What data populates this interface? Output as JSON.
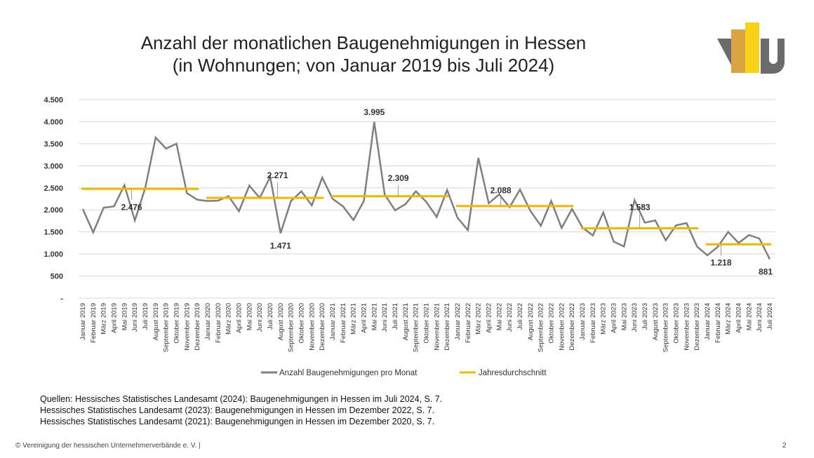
{
  "chart_data": {
    "type": "line",
    "title": "Anzahl der monatlichen Baugenehmigungen in Hessen",
    "subtitle": "(in Wohnungen; von Januar 2019 bis Juli 2024)",
    "categories": [
      "Januar 2019",
      "Februar 2019",
      "März 2019",
      "April 2019",
      "Mai 2019",
      "Juni 2019",
      "Juli 2019",
      "August 2019",
      "September 2019",
      "Oktober 2019",
      "November 2019",
      "Dezember 2019",
      "Januar 2020",
      "Februar 2020",
      "März 2020",
      "April 2020",
      "Mai 2020",
      "Juni 2020",
      "Juli 2020",
      "August 2020",
      "September 2020",
      "Oktober 2020",
      "November 2020",
      "Dezember 2020",
      "Januar 2021",
      "Februar 2021",
      "März 2021",
      "April 2021",
      "Mai 2021",
      "Juni 2021",
      "Juli 2021",
      "August 2021",
      "September 2021",
      "Oktober 2021",
      "November 2021",
      "Dezember 2021",
      "Januar 2022",
      "Februar 2022",
      "März 2022",
      "April 2022",
      "Mai 2022",
      "Juni 2022",
      "Juli 2022",
      "August 2022",
      "September 2022",
      "Oktober 2022",
      "November 2022",
      "Dezember 2022",
      "Januar 2023",
      "Februar 2023",
      "März 2023",
      "April 2023",
      "Mai 2023",
      "Juni 2023",
      "Juli 2023",
      "August 2023",
      "September 2023",
      "Oktober 2023",
      "November 2023",
      "Dezember 2023",
      "Januar 2024",
      "Februar 2024",
      "März 2024",
      "April 2024",
      "Mai 2024",
      "Juni 2024",
      "Juli 2024"
    ],
    "series": [
      {
        "name": "Anzahl Baugenehmigungen pro Monat",
        "color": "#7f7f7f",
        "values": [
          2020,
          1490,
          2050,
          2080,
          2560,
          1760,
          2500,
          3640,
          3390,
          3500,
          2380,
          2230,
          2200,
          2210,
          2310,
          1970,
          2550,
          2270,
          2750,
          1471,
          2200,
          2420,
          2100,
          2730,
          2250,
          2080,
          1770,
          2200,
          3995,
          2350,
          1990,
          2130,
          2420,
          2180,
          1840,
          2450,
          1820,
          1540,
          3180,
          2150,
          2350,
          2060,
          2460,
          1980,
          1640,
          2200,
          1590,
          2020,
          1600,
          1420,
          1940,
          1280,
          1170,
          2220,
          1710,
          1760,
          1310,
          1650,
          1700,
          1170,
          970,
          1160,
          1500,
          1250,
          1430,
          1350,
          881
        ],
        "value_labels": [
          null,
          null,
          null,
          null,
          null,
          null,
          null,
          null,
          null,
          null,
          null,
          null,
          null,
          null,
          null,
          null,
          null,
          null,
          null,
          "1.471",
          null,
          null,
          null,
          null,
          null,
          null,
          null,
          null,
          "3.995",
          null,
          null,
          null,
          null,
          null,
          null,
          null,
          null,
          null,
          null,
          null,
          null,
          null,
          null,
          null,
          null,
          null,
          null,
          null,
          null,
          null,
          null,
          null,
          null,
          null,
          null,
          null,
          null,
          null,
          null,
          null,
          null,
          null,
          null,
          null,
          null,
          null,
          "881"
        ]
      }
    ],
    "averages": {
      "name": "Jahresdurchschnitt",
      "color": "#f2b800",
      "values": [
        2476,
        2271,
        2309,
        2088,
        1583,
        1218
      ],
      "value_labels": [
        "2.476",
        "2.271",
        "2.309",
        "2.088",
        "1.583",
        "1.218"
      ]
    },
    "ylim": [
      0,
      4500
    ],
    "yticks": [
      {
        "value": 0,
        "label": "-"
      },
      500,
      {
        "value": 1000,
        "label": "1.000"
      },
      {
        "value": 1500,
        "label": "1.500"
      },
      {
        "value": 2000,
        "label": "2.000"
      },
      {
        "value": 2500,
        "label": "2.500"
      },
      {
        "value": 3000,
        "label": "3.000"
      },
      {
        "value": 3500,
        "label": "3.500"
      },
      {
        "value": 4000,
        "label": "4.000"
      },
      {
        "value": 4500,
        "label": "4.500"
      }
    ],
    "grid": true,
    "legend": "bottom"
  },
  "sources": [
    "Quellen: Hessisches Statistisches Landesamt (2024): Baugenehmigungen in Hessen im Juli 2024, S. 7.",
    "Hessisches Statistisches Landesamt (2023): Baugenehmigungen in Hessen im Dezember 2022, S. 7.",
    "Hessisches Statistisches Landesamt (2021): Baugenehmigungen in Hessen im Dezember 2020, S. 7."
  ],
  "footer": "© Vereinigung der hessischen Unternehmerverbände e. V. |",
  "page_number": "2"
}
